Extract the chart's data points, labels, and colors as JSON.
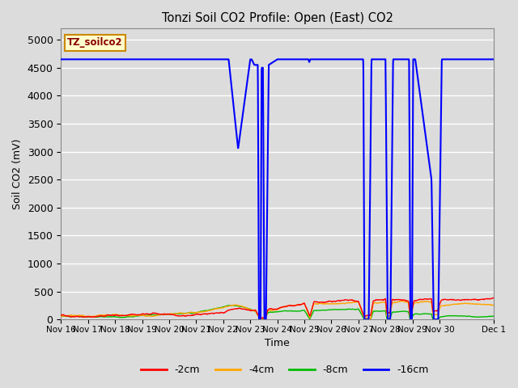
{
  "title": "Tonzi Soil CO2 Profile: Open (East) CO2",
  "ylabel": "Soil CO2 (mV)",
  "xlabel": "Time",
  "annotation": "TZ_soilco2",
  "ylim": [
    0,
    5200
  ],
  "yticks": [
    0,
    500,
    1000,
    1500,
    2000,
    2500,
    3000,
    3500,
    4000,
    4500,
    5000
  ],
  "bg_color": "#dcdcdc",
  "grid_color": "#ffffff",
  "legend_labels": [
    "-2cm",
    "-4cm",
    "-8cm",
    "-16cm"
  ],
  "legend_colors": [
    "#ff0000",
    "#ffa500",
    "#00bb00",
    "#0000ff"
  ],
  "line_colors": {
    "2cm": "#ff0000",
    "4cm": "#ffa500",
    "8cm": "#00bb00",
    "16cm": "#0000ff"
  },
  "x_ticks": [
    16,
    17,
    18,
    19,
    20,
    21,
    22,
    23,
    24,
    25,
    26,
    27,
    28,
    29,
    30,
    32
  ],
  "x_tick_labels": [
    "Nov 16",
    "Nov 17",
    "Nov 18",
    "Nov 19",
    "Nov 20",
    "Nov 21",
    "Nov 22",
    "Nov 23",
    "Nov 24",
    "Nov 25",
    "Nov 26",
    "Nov 27",
    "Nov 28",
    "Nov 29",
    "Nov 30",
    "Dec 1"
  ]
}
